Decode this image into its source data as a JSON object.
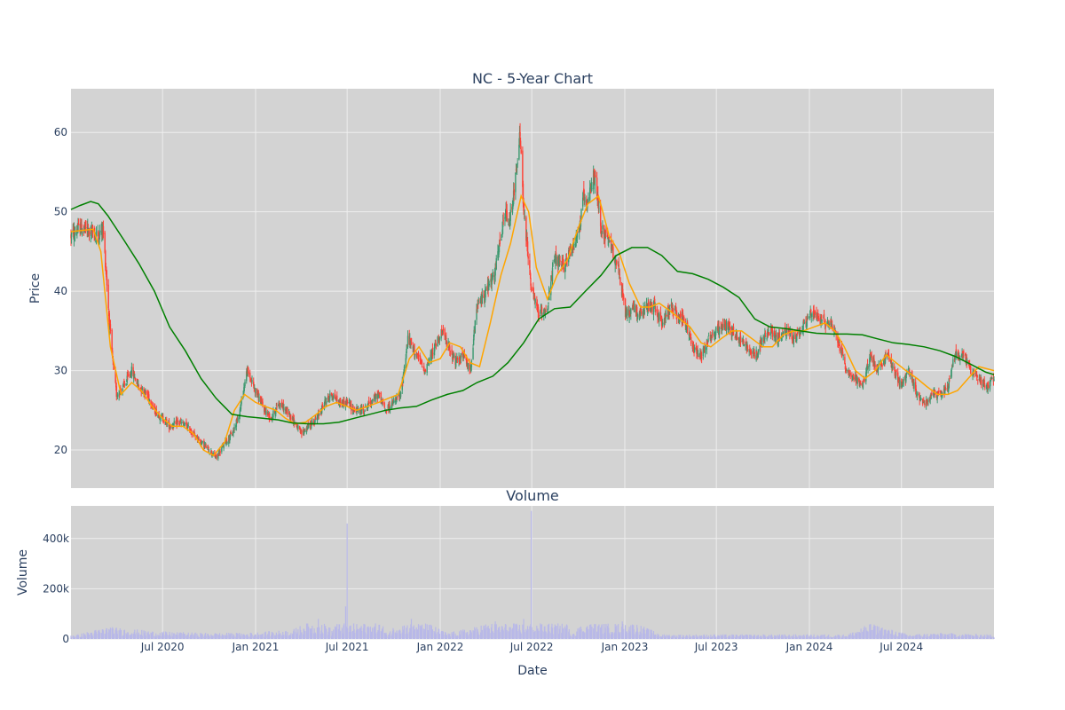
{
  "chart_data": [
    {
      "type": "candlestick",
      "title": "NC - 5-Year Chart",
      "ylabel": "Price",
      "ylim": [
        15.2,
        65.5
      ],
      "yticks": [
        20,
        30,
        40,
        50,
        60
      ],
      "xlim": [
        "2020-01-02",
        "2024-12-31"
      ],
      "grid": true,
      "colors": {
        "background": "#d3d3d3",
        "grid": "#eeeeee",
        "increasing": "#3d9970",
        "decreasing": "#ff4136",
        "ma_short": "#ffa500",
        "ma_long": "#008000"
      },
      "close_approx": {
        "dates": [
          "2020-01-02",
          "2020-01-20",
          "2020-02-10",
          "2020-02-25",
          "2020-03-05",
          "2020-03-12",
          "2020-03-18",
          "2020-03-23",
          "2020-04-01",
          "2020-04-15",
          "2020-05-01",
          "2020-05-15",
          "2020-06-01",
          "2020-06-15",
          "2020-07-01",
          "2020-07-15",
          "2020-08-03",
          "2020-08-17",
          "2020-09-01",
          "2020-09-15",
          "2020-10-01",
          "2020-10-15",
          "2020-11-02",
          "2020-11-16",
          "2020-12-01",
          "2020-12-15",
          "2021-01-04",
          "2021-01-19",
          "2021-02-01",
          "2021-02-16",
          "2021-03-01",
          "2021-03-15",
          "2021-04-01",
          "2021-04-15",
          "2021-05-03",
          "2021-05-17",
          "2021-06-01",
          "2021-06-15",
          "2021-07-01",
          "2021-07-15",
          "2021-08-02",
          "2021-08-16",
          "2021-09-01",
          "2021-09-15",
          "2021-10-01",
          "2021-10-15",
          "2021-10-29",
          "2021-11-15",
          "2021-12-01",
          "2021-12-15",
          "2022-01-03",
          "2022-01-18",
          "2022-02-01",
          "2022-02-15",
          "2022-03-01",
          "2022-03-15",
          "2022-04-01",
          "2022-04-18",
          "2022-05-02",
          "2022-05-10",
          "2022-05-16",
          "2022-06-01",
          "2022-06-08",
          "2022-06-15",
          "2022-07-01",
          "2022-07-15",
          "2022-08-01",
          "2022-08-15",
          "2022-09-01",
          "2022-09-15",
          "2022-10-03",
          "2022-10-12",
          "2022-10-17",
          "2022-11-01",
          "2022-11-15",
          "2022-12-01",
          "2022-12-15",
          "2023-01-03",
          "2023-01-17",
          "2023-02-01",
          "2023-02-15",
          "2023-03-01",
          "2023-03-15",
          "2023-04-03",
          "2023-04-17",
          "2023-05-01",
          "2023-05-15",
          "2023-06-01",
          "2023-06-15",
          "2023-07-03",
          "2023-07-17",
          "2023-08-01",
          "2023-08-15",
          "2023-09-01",
          "2023-09-15",
          "2023-10-02",
          "2023-10-16",
          "2023-11-01",
          "2023-11-15",
          "2023-12-01",
          "2023-12-15",
          "2024-01-02",
          "2024-01-16",
          "2024-02-01",
          "2024-02-15",
          "2024-03-01",
          "2024-03-15",
          "2024-04-01",
          "2024-04-15",
          "2024-05-01",
          "2024-05-15",
          "2024-06-03",
          "2024-06-17",
          "2024-07-01",
          "2024-07-15",
          "2024-08-01",
          "2024-08-15",
          "2024-09-03",
          "2024-09-16",
          "2024-10-01",
          "2024-10-15",
          "2024-11-01",
          "2024-11-15",
          "2024-12-02",
          "2024-12-16",
          "2024-12-31"
        ],
        "values": [
          47,
          48,
          47.5,
          47,
          48,
          42,
          36,
          32,
          27,
          28,
          30,
          28,
          27,
          25,
          24,
          23,
          23.5,
          23,
          22,
          21,
          20,
          19,
          21,
          22,
          25,
          30,
          27,
          25,
          24,
          26,
          25,
          24,
          22,
          23,
          24,
          26,
          27,
          26,
          26,
          25,
          25,
          26,
          27,
          25,
          26,
          27,
          34,
          32,
          30,
          32,
          35,
          33,
          31,
          32,
          30,
          38,
          40,
          42,
          47,
          50,
          48,
          55,
          60,
          50,
          40,
          37,
          38,
          44,
          43,
          45,
          48,
          52,
          50,
          55,
          48,
          46,
          44,
          37,
          38,
          37,
          38,
          38,
          36,
          38,
          37,
          36,
          33,
          32,
          34,
          35,
          36,
          35,
          34,
          33,
          32,
          34,
          35,
          34,
          35,
          34,
          35,
          37,
          37,
          36,
          36,
          33,
          30,
          29,
          28,
          32,
          30,
          32,
          30,
          28,
          30,
          27,
          26,
          27,
          27,
          28,
          32,
          32,
          30,
          29,
          28,
          29
        ]
      },
      "series": [
        {
          "name": "",
          "type": "line",
          "color": "#ffa500",
          "x": [
            "2020-01-02",
            "2020-02-15",
            "2020-03-01",
            "2020-03-20",
            "2020-04-10",
            "2020-05-01",
            "2020-05-20",
            "2020-06-10",
            "2020-07-01",
            "2020-07-20",
            "2020-08-10",
            "2020-09-01",
            "2020-09-20",
            "2020-10-10",
            "2020-11-01",
            "2020-11-20",
            "2020-12-10",
            "2021-01-01",
            "2021-01-20",
            "2021-02-10",
            "2021-03-01",
            "2021-03-20",
            "2021-04-10",
            "2021-05-01",
            "2021-05-20",
            "2021-06-10",
            "2021-07-01",
            "2021-07-20",
            "2021-08-10",
            "2021-09-01",
            "2021-09-20",
            "2021-10-10",
            "2021-11-01",
            "2021-11-20",
            "2021-12-10",
            "2022-01-01",
            "2022-01-20",
            "2022-02-10",
            "2022-03-01",
            "2022-03-20",
            "2022-04-10",
            "2022-05-01",
            "2022-05-20",
            "2022-06-10",
            "2022-06-25",
            "2022-07-10",
            "2022-08-01",
            "2022-08-20",
            "2022-09-10",
            "2022-10-01",
            "2022-10-20",
            "2022-11-10",
            "2022-12-01",
            "2022-12-20",
            "2023-01-10",
            "2023-02-01",
            "2023-02-20",
            "2023-03-10",
            "2023-04-01",
            "2023-04-20",
            "2023-05-10",
            "2023-06-01",
            "2023-06-20",
            "2023-07-10",
            "2023-08-01",
            "2023-08-20",
            "2023-09-10",
            "2023-10-01",
            "2023-10-20",
            "2023-11-10",
            "2023-12-01",
            "2023-12-20",
            "2024-01-10",
            "2024-02-01",
            "2024-02-20",
            "2024-03-10",
            "2024-04-01",
            "2024-04-20",
            "2024-05-10",
            "2024-06-01",
            "2024-06-20",
            "2024-07-10",
            "2024-08-01",
            "2024-08-20",
            "2024-09-10",
            "2024-10-01",
            "2024-10-20",
            "2024-11-10",
            "2024-12-01",
            "2024-12-31"
          ],
          "y": [
            47.5,
            47.8,
            45,
            33,
            27,
            28.5,
            27.5,
            25.5,
            24,
            23,
            23,
            22,
            20,
            19.3,
            21,
            25,
            27,
            26,
            25.5,
            25,
            24,
            23.3,
            23.5,
            24.5,
            25.5,
            26,
            25.5,
            25,
            25.5,
            26,
            26.5,
            27,
            31.5,
            33,
            31,
            31.5,
            33.5,
            33,
            31,
            30.5,
            36,
            42,
            46,
            52,
            50,
            43,
            39,
            42,
            44,
            48,
            51,
            52,
            47,
            45,
            41,
            38,
            38,
            38.5,
            37.5,
            36.5,
            35.5,
            33.5,
            33,
            34,
            35,
            35,
            34,
            33,
            33,
            34.5,
            35,
            35,
            35.5,
            36,
            35,
            33,
            30,
            29,
            30,
            32,
            31,
            30,
            29,
            28,
            27,
            27,
            27.5,
            29,
            30.5,
            30
          ]
        },
        {
          "name": "",
          "type": "line",
          "color": "#008000",
          "x": [
            "2020-01-02",
            "2020-01-20",
            "2020-02-10",
            "2020-02-25",
            "2020-03-15",
            "2020-04-15",
            "2020-05-15",
            "2020-06-15",
            "2020-07-15",
            "2020-08-15",
            "2020-09-15",
            "2020-10-15",
            "2020-11-15",
            "2020-12-15",
            "2021-01-15",
            "2021-02-15",
            "2021-03-15",
            "2021-04-15",
            "2021-05-15",
            "2021-06-15",
            "2021-07-15",
            "2021-08-15",
            "2021-09-15",
            "2021-10-15",
            "2021-11-15",
            "2021-12-15",
            "2022-01-15",
            "2022-02-15",
            "2022-03-15",
            "2022-04-15",
            "2022-05-15",
            "2022-06-15",
            "2022-07-15",
            "2022-08-15",
            "2022-09-15",
            "2022-10-15",
            "2022-11-15",
            "2022-12-15",
            "2023-01-15",
            "2023-02-15",
            "2023-03-15",
            "2023-04-15",
            "2023-05-15",
            "2023-06-15",
            "2023-07-15",
            "2023-08-15",
            "2023-09-15",
            "2023-10-15",
            "2023-11-15",
            "2023-12-15",
            "2024-01-15",
            "2024-02-15",
            "2024-03-15",
            "2024-04-15",
            "2024-05-15",
            "2024-06-15",
            "2024-07-15",
            "2024-08-15",
            "2024-09-15",
            "2024-10-15",
            "2024-11-15",
            "2024-12-15",
            "2024-12-31"
          ],
          "y": [
            50.3,
            50.8,
            51.3,
            51,
            49.5,
            46.5,
            43.5,
            40,
            35.5,
            32.5,
            29,
            26.5,
            24.5,
            24.2,
            24,
            23.8,
            23.4,
            23.3,
            23.3,
            23.5,
            24,
            24.5,
            25,
            25.3,
            25.5,
            26.3,
            27,
            27.5,
            28.5,
            29.3,
            31,
            33.5,
            36.5,
            37.8,
            38,
            40,
            42,
            44.5,
            45.5,
            45.5,
            44.5,
            42.5,
            42.2,
            41.5,
            40.5,
            39.2,
            36.5,
            35.5,
            35.3,
            35,
            34.7,
            34.6,
            34.6,
            34.5,
            34,
            33.5,
            33.3,
            33,
            32.5,
            31.8,
            30.8,
            29.8,
            29.5
          ]
        }
      ]
    },
    {
      "type": "bar",
      "title": "Volume",
      "xlabel": "Date",
      "ylabel": "Volume",
      "ylim": [
        0,
        530000
      ],
      "yticks": [
        0,
        200000,
        400000
      ],
      "ytick_labels": [
        "0",
        "200k",
        "400k"
      ],
      "x_ticks": [
        "2020-07-01",
        "2021-01-01",
        "2021-07-01",
        "2022-01-01",
        "2022-07-01",
        "2023-01-01",
        "2023-07-01",
        "2024-01-01",
        "2024-07-01"
      ],
      "x_tick_labels": [
        "Jul 2020",
        "Jan 2021",
        "Jul 2021",
        "Jan 2022",
        "Jul 2022",
        "Jan 2023",
        "Jul 2023",
        "Jan 2024",
        "Jul 2024"
      ],
      "grid": true,
      "colors": {
        "background": "#d3d3d3",
        "grid": "#eeeeee",
        "bars": "#b8b8e8"
      },
      "volume_approx": {
        "dates": [
          "2020-01-15",
          "2020-03-15",
          "2020-06-15",
          "2020-09-15",
          "2020-12-15",
          "2021-03-15",
          "2021-04-20",
          "2021-05-05",
          "2021-06-01",
          "2021-06-28",
          "2021-07-01",
          "2021-09-15",
          "2021-11-05",
          "2022-01-15",
          "2022-03-15",
          "2022-04-20",
          "2022-05-20",
          "2022-06-15",
          "2022-06-30",
          "2022-09-15",
          "2022-10-20",
          "2022-12-27",
          "2023-03-15",
          "2023-06-15",
          "2023-09-15",
          "2023-12-15",
          "2024-03-15",
          "2024-05-01",
          "2024-07-15",
          "2024-09-15",
          "2024-12-15"
        ],
        "values": [
          15000,
          40000,
          25000,
          20000,
          20000,
          30000,
          60000,
          80000,
          30000,
          130000,
          460000,
          20000,
          80000,
          20000,
          40000,
          70000,
          45000,
          80000,
          510000,
          20000,
          60000,
          70000,
          15000,
          15000,
          15000,
          15000,
          15000,
          50000,
          15000,
          20000,
          15000
        ]
      }
    }
  ]
}
